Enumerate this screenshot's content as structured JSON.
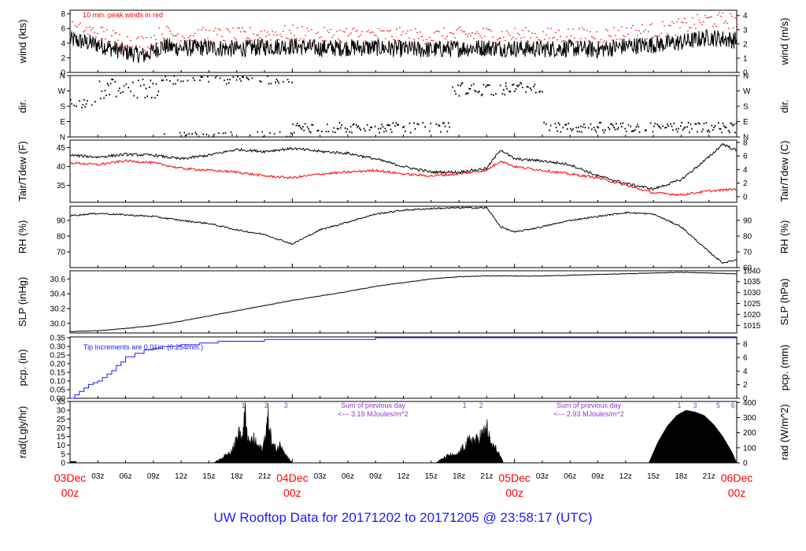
{
  "title": "UW Rooftop Data for 20171202  to  20171205 @ 23:58:17  (UTC)",
  "colors": {
    "black": "#000000",
    "red": "#ff0000",
    "blue": "#1a1aff",
    "purple": "#9933cc",
    "frame": "#000000"
  },
  "x_axis": {
    "range_hours": [
      0,
      72
    ],
    "tick_labels": [
      "03z",
      "06z",
      "09z",
      "12z",
      "15z",
      "18z",
      "21z",
      "03z",
      "06z",
      "09z",
      "12z",
      "15z",
      "18z",
      "21z",
      "03z",
      "06z",
      "09z",
      "12z",
      "15z",
      "18z",
      "21z"
    ],
    "tick_hours": [
      3,
      6,
      9,
      12,
      15,
      18,
      21,
      27,
      30,
      33,
      36,
      39,
      42,
      45,
      51,
      54,
      57,
      60,
      63,
      66,
      69
    ],
    "day_labels": [
      {
        "date": "03Dec",
        "time": "00z",
        "hour": 0
      },
      {
        "date": "04Dec",
        "time": "00z",
        "hour": 24
      },
      {
        "date": "05Dec",
        "time": "00z",
        "hour": 48
      },
      {
        "date": "06Dec",
        "time": "00z",
        "hour": 72
      }
    ]
  },
  "annotations": {
    "wind_note": "10 min. peak winds in red",
    "precip_note": "Tip increments are 0.01in. (0.254mm.)",
    "rad_notes": [
      {
        "line1": "Sum of previous day",
        "line2": "<--- 3.19 MJoules/m^2"
      },
      {
        "line1": "Sum of previous day",
        "line2": "<--- 2.93 MJoules/m^2"
      }
    ],
    "rad_markers": [
      {
        "label": "1",
        "hour": 18.7
      },
      {
        "label": "2",
        "hour": 21.2
      },
      {
        "label": "3",
        "hour": 23.3
      },
      {
        "label": "1",
        "hour": 42.6
      },
      {
        "label": "2",
        "hour": 44.4
      },
      {
        "label": "1",
        "hour": 65.8
      },
      {
        "label": "3",
        "hour": 67.5
      },
      {
        "label": "5",
        "hour": 70.0
      },
      {
        "label": "6",
        "hour": 71.6
      }
    ]
  },
  "chart_data": [
    {
      "type": "line",
      "id": "wind",
      "ylabel": "wind (kts)",
      "ylabel_right": "wind (m/s)",
      "ylim": [
        0,
        8.5
      ],
      "yticks": [
        0,
        2,
        4,
        6,
        8
      ],
      "yticks_right": {
        "labels": [
          "0",
          "1",
          "2",
          "3",
          "4"
        ],
        "values": [
          0,
          1.944,
          3.888,
          5.832,
          7.776
        ]
      },
      "series": [
        {
          "hours": [
            0,
            3,
            6,
            8,
            10,
            12,
            15,
            18,
            21,
            24,
            27,
            30,
            33,
            36,
            39,
            42,
            45,
            48,
            51,
            54,
            57,
            60,
            63,
            66,
            69,
            72
          ],
          "values": [
            4.5,
            3.8,
            2.8,
            2.3,
            3.6,
            3.3,
            3.4,
            3.2,
            3.5,
            3.6,
            3.3,
            3.4,
            3.4,
            3.2,
            3.1,
            3.3,
            3.4,
            3.3,
            3.2,
            3.3,
            3.1,
            3.6,
            3.8,
            4.1,
            4.8,
            4.4
          ]
        },
        {
          "hours": [
            0,
            3,
            6,
            8,
            10,
            12,
            15,
            18,
            21,
            24,
            27,
            30,
            33,
            36,
            39,
            42,
            45,
            48,
            51,
            54,
            57,
            60,
            63,
            66,
            69,
            72
          ],
          "values": [
            6.0,
            5.4,
            4.3,
            4.0,
            5.4,
            5.0,
            5.1,
            5.0,
            5.3,
            5.4,
            5.0,
            5.2,
            5.1,
            5.0,
            4.9,
            5.1,
            5.2,
            5.1,
            5.0,
            5.1,
            5.0,
            5.5,
            5.7,
            6.3,
            7.2,
            7.0
          ]
        }
      ]
    },
    {
      "type": "scatter",
      "id": "dir",
      "ylabel": "dir.",
      "ylabel_right": "dir.",
      "ylim": [
        0,
        360
      ],
      "yticks_labels": [
        "N",
        "E",
        "S",
        "W",
        "N"
      ],
      "yticks": [
        0,
        90,
        180,
        270,
        360
      ],
      "segments": [
        {
          "from": 0,
          "to": 3,
          "center": 195,
          "spread": 25
        },
        {
          "from": 3,
          "to": 10,
          "center": 285,
          "spread": 60
        },
        {
          "from": 10,
          "to": 24,
          "center": 350,
          "spread": 40
        },
        {
          "from": 24,
          "to": 41,
          "center": 55,
          "spread": 30
        },
        {
          "from": 41,
          "to": 47,
          "center": 280,
          "spread": 40
        },
        {
          "from": 47,
          "to": 51,
          "center": 290,
          "spread": 30
        },
        {
          "from": 51,
          "to": 72,
          "center": 55,
          "spread": 30
        }
      ]
    },
    {
      "type": "line",
      "id": "temp",
      "ylabel": "Tair/Tdew (F)",
      "ylabel_right": "Tair/Tdew (C)",
      "ylim": [
        30.5,
        47
      ],
      "yticks": [
        35,
        40,
        45
      ],
      "yticks_right": {
        "labels": [
          "0",
          "2",
          "4",
          "6",
          "8"
        ],
        "values": [
          32,
          35.6,
          39.2,
          42.8,
          46.4
        ]
      },
      "series": [
        {
          "hours": [
            0,
            3,
            6,
            9,
            12,
            15,
            18,
            21,
            24,
            27,
            30,
            33,
            36,
            39,
            42,
            45,
            46.5,
            48,
            51,
            54,
            57,
            60,
            63,
            66,
            69,
            70.5,
            72
          ],
          "values": [
            43.0,
            42.5,
            43.2,
            43.0,
            42.0,
            43.0,
            44.5,
            44.0,
            44.8,
            44.0,
            43.5,
            42.0,
            40.0,
            38.5,
            38.5,
            39.5,
            44.5,
            42.0,
            41.5,
            40.5,
            37.5,
            35.5,
            34.0,
            36.5,
            42.5,
            46.0,
            44.2
          ]
        },
        {
          "hours": [
            0,
            3,
            6,
            9,
            12,
            15,
            18,
            21,
            24,
            27,
            30,
            33,
            36,
            39,
            42,
            45,
            46.5,
            48,
            51,
            54,
            57,
            60,
            63,
            66,
            69,
            72
          ],
          "values": [
            41.0,
            40.5,
            41.5,
            41.0,
            39.5,
            39.0,
            38.5,
            37.5,
            37.0,
            38.0,
            38.5,
            39.0,
            38.0,
            37.5,
            38.0,
            39.0,
            41.5,
            40.0,
            39.0,
            38.0,
            37.0,
            35.0,
            33.0,
            32.5,
            33.5,
            34.0
          ]
        }
      ]
    },
    {
      "type": "line",
      "id": "rh",
      "ylabel": "RH (%)",
      "ylabel_right": "RH (%)",
      "ylim": [
        60,
        99
      ],
      "yticks": [
        70,
        80,
        90
      ],
      "yticks_right": {
        "labels": [
          "60",
          "70",
          "80",
          "90"
        ],
        "values": [
          60,
          70,
          80,
          90
        ]
      },
      "series": [
        {
          "hours": [
            0,
            3,
            6,
            9,
            12,
            15,
            18,
            21,
            24,
            27,
            30,
            33,
            36,
            39,
            42,
            45,
            46.5,
            48,
            51,
            54,
            57,
            60,
            63,
            66,
            69,
            70.5,
            72
          ],
          "values": [
            93.0,
            94.5,
            93.5,
            92.5,
            90.0,
            88.0,
            84.0,
            81.0,
            75.0,
            84.0,
            89.0,
            94.0,
            96.5,
            97.5,
            98.0,
            98.0,
            86.0,
            82.5,
            86.0,
            90.0,
            92.5,
            95.0,
            94.0,
            86.0,
            70.0,
            63.0,
            65.0
          ]
        }
      ]
    },
    {
      "type": "line",
      "id": "slp",
      "ylabel": "SLP (inHg)",
      "ylabel_right": "SLP (hPa)",
      "ylim": [
        29.87,
        30.71
      ],
      "yticks": [
        30.0,
        30.2,
        30.4,
        30.6
      ],
      "yticks_right": {
        "labels": [
          "1015",
          "1020",
          "1025",
          "1030",
          "1035",
          "1040"
        ],
        "values": [
          29.973,
          30.121,
          30.269,
          30.416,
          30.564,
          30.712
        ]
      },
      "series": [
        {
          "hours": [
            0,
            3,
            6,
            9,
            12,
            15,
            18,
            21,
            24,
            27,
            30,
            33,
            36,
            39,
            42,
            45,
            48,
            51,
            54,
            57,
            60,
            63,
            66,
            69,
            72
          ],
          "values": [
            29.89,
            29.9,
            29.93,
            29.97,
            30.03,
            30.1,
            30.17,
            30.24,
            30.31,
            30.37,
            30.43,
            30.5,
            30.55,
            30.6,
            30.63,
            30.64,
            30.64,
            30.64,
            30.65,
            30.66,
            30.67,
            30.68,
            30.69,
            30.68,
            30.67
          ]
        }
      ]
    },
    {
      "type": "line",
      "id": "pcp",
      "ylabel": "pcp. (in)",
      "ylabel_right": "pcp. (mm)",
      "ylim": [
        0,
        0.355
      ],
      "yticks": [
        0,
        0.05,
        0.1,
        0.15,
        0.2,
        0.25,
        0.3,
        0.35
      ],
      "yticks_right": {
        "labels": [
          "0",
          "2",
          "4",
          "6",
          "8"
        ],
        "values": [
          0,
          0.0787,
          0.1575,
          0.2362,
          0.315
        ]
      },
      "series": [
        {
          "hours": [
            0,
            0.5,
            1,
            1.5,
            2,
            2.5,
            3,
            3.5,
            4,
            4.5,
            5,
            5.5,
            6,
            7,
            8,
            9,
            10,
            12,
            14,
            16,
            18,
            20,
            21,
            24,
            27,
            30,
            33,
            36,
            72
          ],
          "values": [
            0,
            0.02,
            0.04,
            0.06,
            0.08,
            0.09,
            0.1,
            0.12,
            0.14,
            0.16,
            0.19,
            0.21,
            0.24,
            0.26,
            0.28,
            0.29,
            0.3,
            0.31,
            0.32,
            0.33,
            0.33,
            0.33,
            0.34,
            0.34,
            0.34,
            0.34,
            0.35,
            0.35,
            0.35
          ]
        }
      ]
    },
    {
      "type": "area",
      "id": "rad",
      "ylabel": "rad(Lgly/hr)",
      "ylabel_right": "rad (W/m^2)",
      "ylim": [
        0,
        35
      ],
      "yticks": [
        0,
        5,
        10,
        15,
        20,
        25,
        30,
        35
      ],
      "yticks_right": {
        "labels": [
          "0",
          "100",
          "200",
          "300",
          "400"
        ],
        "values": [
          0,
          8.6,
          17.2,
          25.8,
          34.4
        ]
      },
      "series": [
        {
          "hours": [
            15.5,
            16.5,
            17.3,
            17.8,
            18.2,
            18.6,
            18.9,
            19.3,
            19.8,
            20.3,
            20.8,
            21.1,
            21.4,
            21.8,
            22.3,
            22.8,
            23.3,
            24.0
          ],
          "values": [
            0,
            4,
            8,
            14,
            22,
            18,
            36,
            14,
            18,
            12,
            10,
            22,
            34,
            14,
            10,
            14,
            6,
            0
          ]
        },
        {
          "hours": [
            39.5,
            40.2,
            41.0,
            41.7,
            42.3,
            42.8,
            43.3,
            43.8,
            44.3,
            44.7,
            45.0,
            45.4,
            45.8,
            46.3,
            46.8
          ],
          "values": [
            0,
            3,
            6,
            5,
            10,
            14,
            18,
            16,
            20,
            22,
            27,
            14,
            12,
            7,
            0
          ]
        },
        {
          "hours": [
            62.5,
            63.5,
            64.5,
            65.5,
            66.5,
            67.5,
            68.5,
            69.5,
            70.5,
            71.5,
            72.0
          ],
          "values": [
            0,
            12,
            21,
            27,
            30,
            29,
            27,
            22,
            15,
            6,
            0
          ]
        }
      ]
    }
  ]
}
